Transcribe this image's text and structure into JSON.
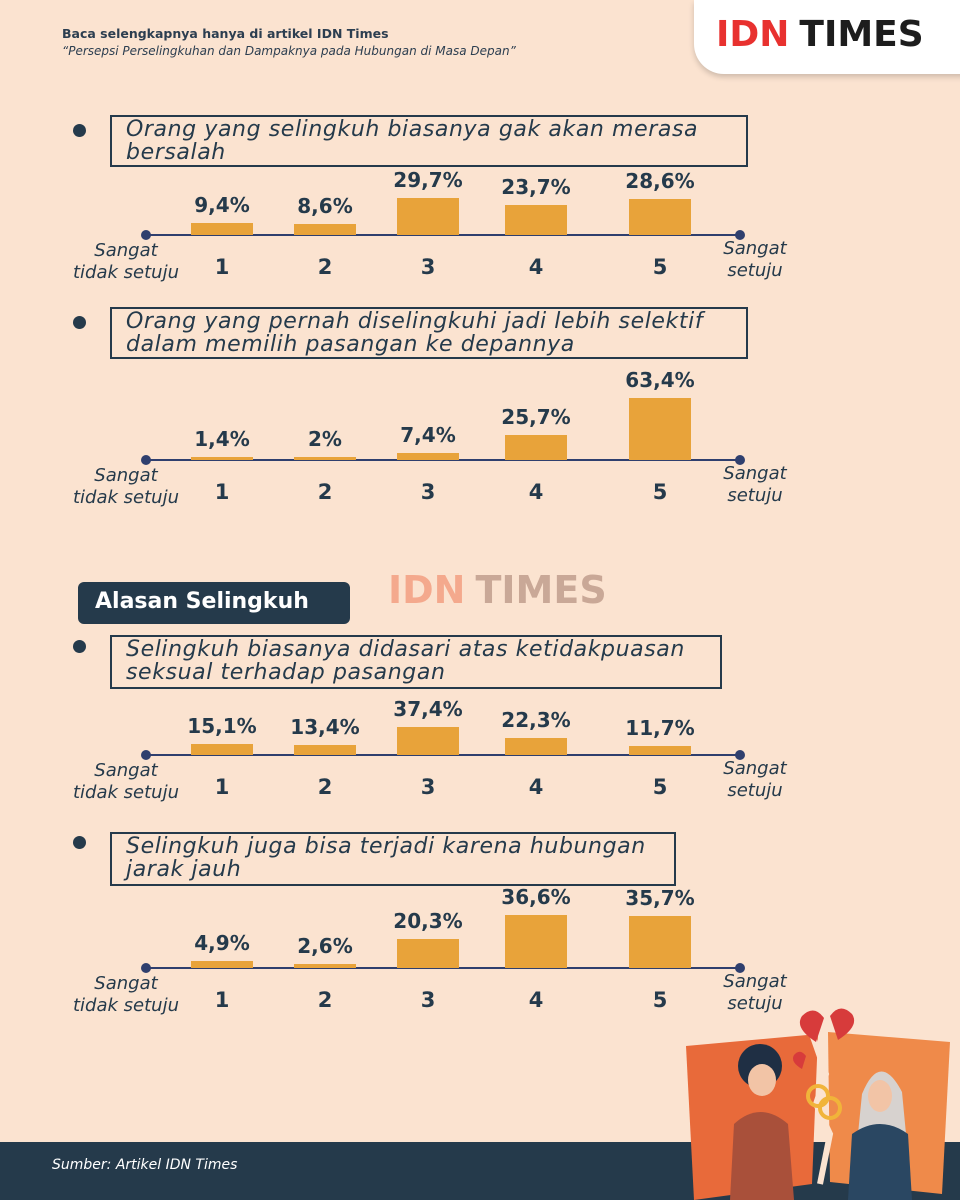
{
  "header": {
    "line1": "Baca selengkapnya hanya di artikel IDN Times",
    "line2": "“Persepsi Perselingkuhan dan Dampaknya pada Hubungan di Masa Depan”",
    "logo_idn": "IDN",
    "logo_times": "TIMES"
  },
  "watermark": {
    "idn": "IDN",
    "times": "TIMES"
  },
  "section_title": "Alasan Selingkuh",
  "scale": {
    "left_label": [
      "Sangat",
      "tidak setuju"
    ],
    "right_label": [
      "Sangat",
      "setuju"
    ]
  },
  "chart_data": [
    {
      "type": "bar",
      "title": "Orang yang selingkuh biasanya gak akan merasa bersalah",
      "title_lines": [
        "Orang yang selingkuh biasanya gak akan merasa",
        "bersalah"
      ],
      "categories": [
        "1",
        "2",
        "3",
        "4",
        "5"
      ],
      "values": [
        9.4,
        8.6,
        29.7,
        23.7,
        28.6
      ],
      "labels": [
        "9,4%",
        "8,6%",
        "29,7%",
        "23,7%",
        "28,6%"
      ]
    },
    {
      "type": "bar",
      "title": "Orang yang pernah diselingkuhi jadi lebih selektif dalam memilih pasangan ke depannya",
      "title_lines": [
        "Orang yang pernah diselingkuhi jadi lebih selektif",
        "dalam memilih pasangan ke depannya"
      ],
      "categories": [
        "1",
        "2",
        "3",
        "4",
        "5"
      ],
      "values": [
        1.4,
        2,
        7.4,
        25.7,
        63.4
      ],
      "labels": [
        "1,4%",
        "2%",
        "7,4%",
        "25,7%",
        "63,4%"
      ]
    },
    {
      "type": "bar",
      "title": "Selingkuh biasanya didasari atas ketidakpuasan seksual terhadap pasangan",
      "title_lines": [
        "Selingkuh biasanya didasari atas ketidakpuasan",
        "seksual terhadap pasangan"
      ],
      "categories": [
        "1",
        "2",
        "3",
        "4",
        "5"
      ],
      "values": [
        15.1,
        13.4,
        37.4,
        22.3,
        11.7
      ],
      "labels": [
        "15,1%",
        "13,4%",
        "37,4%",
        "22,3%",
        "11,7%"
      ]
    },
    {
      "type": "bar",
      "title": "Selingkuh juga bisa terjadi karena hubungan jarak jauh",
      "title_lines": [
        "Selingkuh juga bisa terjadi karena hubungan",
        "jarak jauh"
      ],
      "categories": [
        "1",
        "2",
        "3",
        "4",
        "5"
      ],
      "values": [
        4.9,
        2.6,
        20.3,
        36.6,
        35.7
      ],
      "labels": [
        "4,9%",
        "2,6%",
        "20,3%",
        "36,6%",
        "35,7%"
      ]
    }
  ],
  "footer": {
    "source": "Sumber: Artikel IDN Times"
  },
  "colors": {
    "background": "#fbe3d0",
    "bar": "#e8a33a",
    "navy": "#253a4b",
    "logo_red": "#e8312f"
  }
}
